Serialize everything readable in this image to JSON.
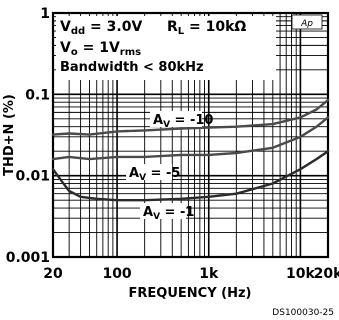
{
  "chart_data": {
    "type": "line",
    "xlabel": "FREQUENCY (Hz)",
    "ylabel": "THD+N (%)",
    "x_scale": "log",
    "y_scale": "log",
    "xlim": [
      20,
      20000
    ],
    "ylim": [
      0.001,
      1
    ],
    "x_ticks": [
      {
        "value": 20,
        "label": "20"
      },
      {
        "value": 100,
        "label": "100"
      },
      {
        "value": 1000,
        "label": "1k"
      },
      {
        "value": 10000,
        "label": "10k"
      },
      {
        "value": 20000,
        "label": "20k"
      }
    ],
    "y_ticks": [
      {
        "value": 1,
        "label": "1"
      },
      {
        "value": 0.1,
        "label": "0.1"
      },
      {
        "value": 0.01,
        "label": "0.01"
      },
      {
        "value": 0.001,
        "label": "0.001"
      }
    ],
    "grid": true,
    "conditions": {
      "vdd_sym": "V",
      "vdd_sub": "dd",
      "vdd_val": " = 3.0V",
      "rl_sym": "R",
      "rl_sub": "L",
      "rl_val": " = 10kΩ",
      "vo_sym": "V",
      "vo_sub": "o",
      "vo_val": " = 1V",
      "vo_unit_sub": "rms",
      "bandwidth": "Bandwidth < 80kHz"
    },
    "badge": "Ap",
    "series": [
      {
        "name": "-10",
        "label_sym": "A",
        "label_sub": "V",
        "label_val": " = -10",
        "color": "#4a4a4a",
        "x": [
          20,
          30,
          50,
          100,
          200,
          500,
          1000,
          2000,
          5000,
          10000,
          15000,
          20000
        ],
        "y": [
          0.032,
          0.033,
          0.032,
          0.035,
          0.036,
          0.038,
          0.039,
          0.04,
          0.043,
          0.052,
          0.065,
          0.085
        ]
      },
      {
        "name": "-5",
        "label_sym": "A",
        "label_sub": "V",
        "label_val": " = -5",
        "color": "#4a4a4a",
        "x": [
          20,
          30,
          50,
          100,
          200,
          500,
          1000,
          2000,
          5000,
          10000,
          15000,
          20000
        ],
        "y": [
          0.016,
          0.017,
          0.016,
          0.017,
          0.017,
          0.018,
          0.018,
          0.019,
          0.022,
          0.03,
          0.04,
          0.052
        ]
      },
      {
        "name": "-1",
        "label_sym": "A",
        "label_sub": "V",
        "label_val": " = -1",
        "color": "#2a2a2a",
        "x": [
          20,
          25,
          30,
          40,
          60,
          100,
          200,
          500,
          1000,
          2000,
          5000,
          10000,
          15000,
          20000
        ],
        "y": [
          0.012,
          0.0085,
          0.0065,
          0.0055,
          0.0052,
          0.005,
          0.005,
          0.0052,
          0.0055,
          0.006,
          0.008,
          0.012,
          0.016,
          0.02
        ]
      }
    ]
  },
  "figure_id": "DS100030-25"
}
